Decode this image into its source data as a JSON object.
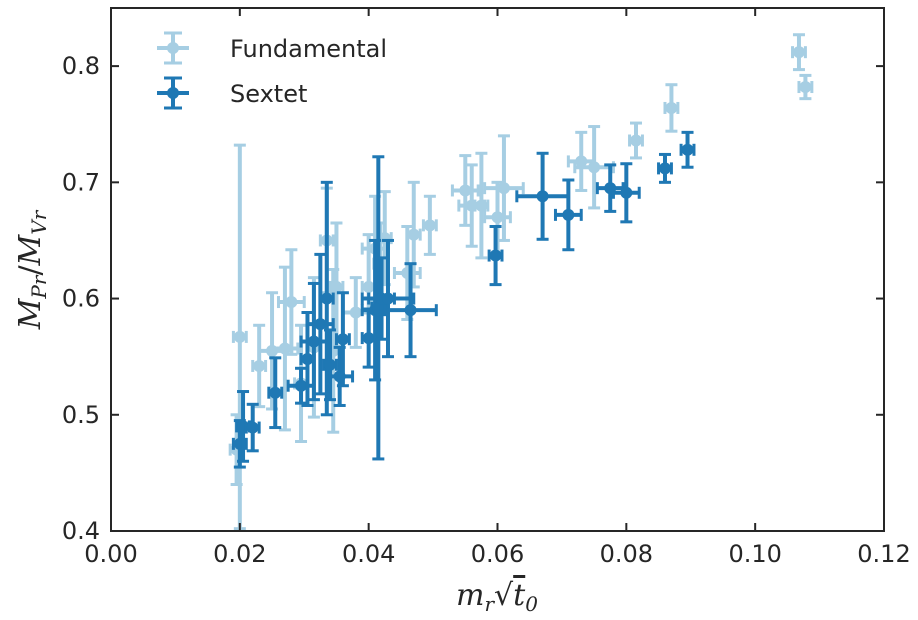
{
  "chart_data": {
    "type": "scatter",
    "xlabel": "m_r√t₀",
    "ylabel": "M_Pr/M_Vr",
    "xlim": [
      0.0,
      0.12
    ],
    "ylim": [
      0.4,
      0.85
    ],
    "xticks": [
      "0.00",
      "0.02",
      "0.04",
      "0.06",
      "0.08",
      "0.10",
      "0.12"
    ],
    "yticks": [
      "0.4",
      "0.5",
      "0.6",
      "0.7",
      "0.8"
    ],
    "grid": false,
    "legend_position": "upper-left",
    "series": [
      {
        "name": "Fundamental",
        "color": "#a6cee3",
        "points": [
          {
            "x": 0.0195,
            "y": 0.47,
            "xerr": 0.001,
            "yerr": 0.03
          },
          {
            "x": 0.02,
            "y": 0.567,
            "xerr": 0.001,
            "yerr": 0.165
          },
          {
            "x": 0.023,
            "y": 0.542,
            "xerr": 0.001,
            "yerr": 0.035
          },
          {
            "x": 0.025,
            "y": 0.555,
            "xerr": 0.002,
            "yerr": 0.05
          },
          {
            "x": 0.027,
            "y": 0.557,
            "xerr": 0.002,
            "yerr": 0.07
          },
          {
            "x": 0.028,
            "y": 0.597,
            "xerr": 0.002,
            "yerr": 0.045
          },
          {
            "x": 0.0295,
            "y": 0.527,
            "xerr": 0.001,
            "yerr": 0.05
          },
          {
            "x": 0.0315,
            "y": 0.558,
            "xerr": 0.001,
            "yerr": 0.06
          },
          {
            "x": 0.0335,
            "y": 0.65,
            "xerr": 0.001,
            "yerr": 0.045
          },
          {
            "x": 0.0345,
            "y": 0.555,
            "xerr": 0.001,
            "yerr": 0.07
          },
          {
            "x": 0.035,
            "y": 0.61,
            "xerr": 0.001,
            "yerr": 0.055
          },
          {
            "x": 0.038,
            "y": 0.588,
            "xerr": 0.002,
            "yerr": 0.03
          },
          {
            "x": 0.04,
            "y": 0.61,
            "xerr": 0.001,
            "yerr": 0.045
          },
          {
            "x": 0.041,
            "y": 0.643,
            "xerr": 0.002,
            "yerr": 0.045
          },
          {
            "x": 0.0418,
            "y": 0.63,
            "xerr": 0.001,
            "yerr": 0.035
          },
          {
            "x": 0.0425,
            "y": 0.652,
            "xerr": 0.001,
            "yerr": 0.04
          },
          {
            "x": 0.046,
            "y": 0.622,
            "xerr": 0.002,
            "yerr": 0.04
          },
          {
            "x": 0.047,
            "y": 0.655,
            "xerr": 0.001,
            "yerr": 0.045
          },
          {
            "x": 0.0495,
            "y": 0.663,
            "xerr": 0.001,
            "yerr": 0.025
          },
          {
            "x": 0.055,
            "y": 0.693,
            "xerr": 0.002,
            "yerr": 0.03
          },
          {
            "x": 0.056,
            "y": 0.68,
            "xerr": 0.002,
            "yerr": 0.035
          },
          {
            "x": 0.0575,
            "y": 0.68,
            "xerr": 0.001,
            "yerr": 0.045
          },
          {
            "x": 0.06,
            "y": 0.67,
            "xerr": 0.002,
            "yerr": 0.03
          },
          {
            "x": 0.061,
            "y": 0.695,
            "xerr": 0.003,
            "yerr": 0.045
          },
          {
            "x": 0.073,
            "y": 0.718,
            "xerr": 0.002,
            "yerr": 0.025
          },
          {
            "x": 0.075,
            "y": 0.713,
            "xerr": 0.003,
            "yerr": 0.035
          },
          {
            "x": 0.0815,
            "y": 0.736,
            "xerr": 0.001,
            "yerr": 0.015
          },
          {
            "x": 0.087,
            "y": 0.764,
            "xerr": 0.001,
            "yerr": 0.02
          },
          {
            "x": 0.1068,
            "y": 0.812,
            "xerr": 0.001,
            "yerr": 0.015
          },
          {
            "x": 0.1078,
            "y": 0.782,
            "xerr": 0.001,
            "yerr": 0.01
          }
        ]
      },
      {
        "name": "Sextet",
        "color": "#1f78b4",
        "points": [
          {
            "x": 0.02,
            "y": 0.475,
            "xerr": 0.001,
            "yerr": 0.02
          },
          {
            "x": 0.0205,
            "y": 0.49,
            "xerr": 0.001,
            "yerr": 0.03
          },
          {
            "x": 0.022,
            "y": 0.489,
            "xerr": 0.001,
            "yerr": 0.02
          },
          {
            "x": 0.0255,
            "y": 0.519,
            "xerr": 0.001,
            "yerr": 0.03
          },
          {
            "x": 0.0295,
            "y": 0.525,
            "xerr": 0.002,
            "yerr": 0.015
          },
          {
            "x": 0.0305,
            "y": 0.548,
            "xerr": 0.001,
            "yerr": 0.04
          },
          {
            "x": 0.0315,
            "y": 0.563,
            "xerr": 0.002,
            "yerr": 0.05
          },
          {
            "x": 0.0325,
            "y": 0.578,
            "xerr": 0.002,
            "yerr": 0.06
          },
          {
            "x": 0.0335,
            "y": 0.6,
            "xerr": 0.001,
            "yerr": 0.1
          },
          {
            "x": 0.034,
            "y": 0.543,
            "xerr": 0.001,
            "yerr": 0.03
          },
          {
            "x": 0.0355,
            "y": 0.533,
            "xerr": 0.002,
            "yerr": 0.025
          },
          {
            "x": 0.036,
            "y": 0.565,
            "xerr": 0.001,
            "yerr": 0.04
          },
          {
            "x": 0.04,
            "y": 0.566,
            "xerr": 0.001,
            "yerr": 0.025
          },
          {
            "x": 0.041,
            "y": 0.59,
            "xerr": 0.002,
            "yerr": 0.06
          },
          {
            "x": 0.0415,
            "y": 0.592,
            "xerr": 0.001,
            "yerr": 0.13
          },
          {
            "x": 0.042,
            "y": 0.6,
            "xerr": 0.002,
            "yerr": 0.035
          },
          {
            "x": 0.043,
            "y": 0.6,
            "xerr": 0.004,
            "yerr": 0.05
          },
          {
            "x": 0.0465,
            "y": 0.59,
            "xerr": 0.004,
            "yerr": 0.04
          },
          {
            "x": 0.0597,
            "y": 0.637,
            "xerr": 0.001,
            "yerr": 0.025
          },
          {
            "x": 0.067,
            "y": 0.688,
            "xerr": 0.004,
            "yerr": 0.037
          },
          {
            "x": 0.071,
            "y": 0.672,
            "xerr": 0.002,
            "yerr": 0.03
          },
          {
            "x": 0.0775,
            "y": 0.695,
            "xerr": 0.002,
            "yerr": 0.02
          },
          {
            "x": 0.08,
            "y": 0.691,
            "xerr": 0.002,
            "yerr": 0.025
          },
          {
            "x": 0.086,
            "y": 0.712,
            "xerr": 0.001,
            "yerr": 0.012
          },
          {
            "x": 0.0895,
            "y": 0.728,
            "xerr": 0.001,
            "yerr": 0.015
          }
        ]
      }
    ]
  }
}
